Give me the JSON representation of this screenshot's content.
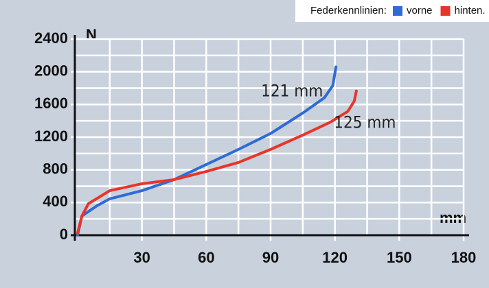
{
  "chart_data": {
    "type": "line",
    "legend_title": "Federkennlinien:",
    "y_label": "N",
    "x_label": "mm",
    "xlim": [
      0,
      180
    ],
    "xticks": [
      30,
      60,
      90,
      120,
      150,
      180
    ],
    "ylim": [
      0,
      2400
    ],
    "yticks": [
      0,
      400,
      800,
      1200,
      1600,
      2000,
      2400
    ],
    "grid": true,
    "legend": "top-right",
    "series": [
      {
        "name": "vorne",
        "color": "#2f6bd6",
        "x": [
          0,
          2,
          9,
          15,
          30,
          45,
          60,
          75,
          90,
          105,
          115,
          119,
          120.5
        ],
        "values": [
          0,
          235,
          360,
          445,
          545,
          680,
          865,
          1050,
          1245,
          1495,
          1680,
          1830,
          2060
        ]
      },
      {
        "name": "hinten.",
        "color": "#e8352a",
        "x": [
          0,
          2,
          5,
          15,
          30,
          45,
          60,
          75,
          90,
          105,
          118,
          126,
          129,
          130
        ],
        "values": [
          25,
          235,
          385,
          545,
          630,
          680,
          780,
          890,
          1050,
          1225,
          1385,
          1515,
          1640,
          1765
        ]
      }
    ],
    "annotations": [
      {
        "text": "121 mm",
        "x": 100,
        "y": 1760
      },
      {
        "text": "125 mm",
        "x": 134,
        "y": 1370
      }
    ]
  }
}
